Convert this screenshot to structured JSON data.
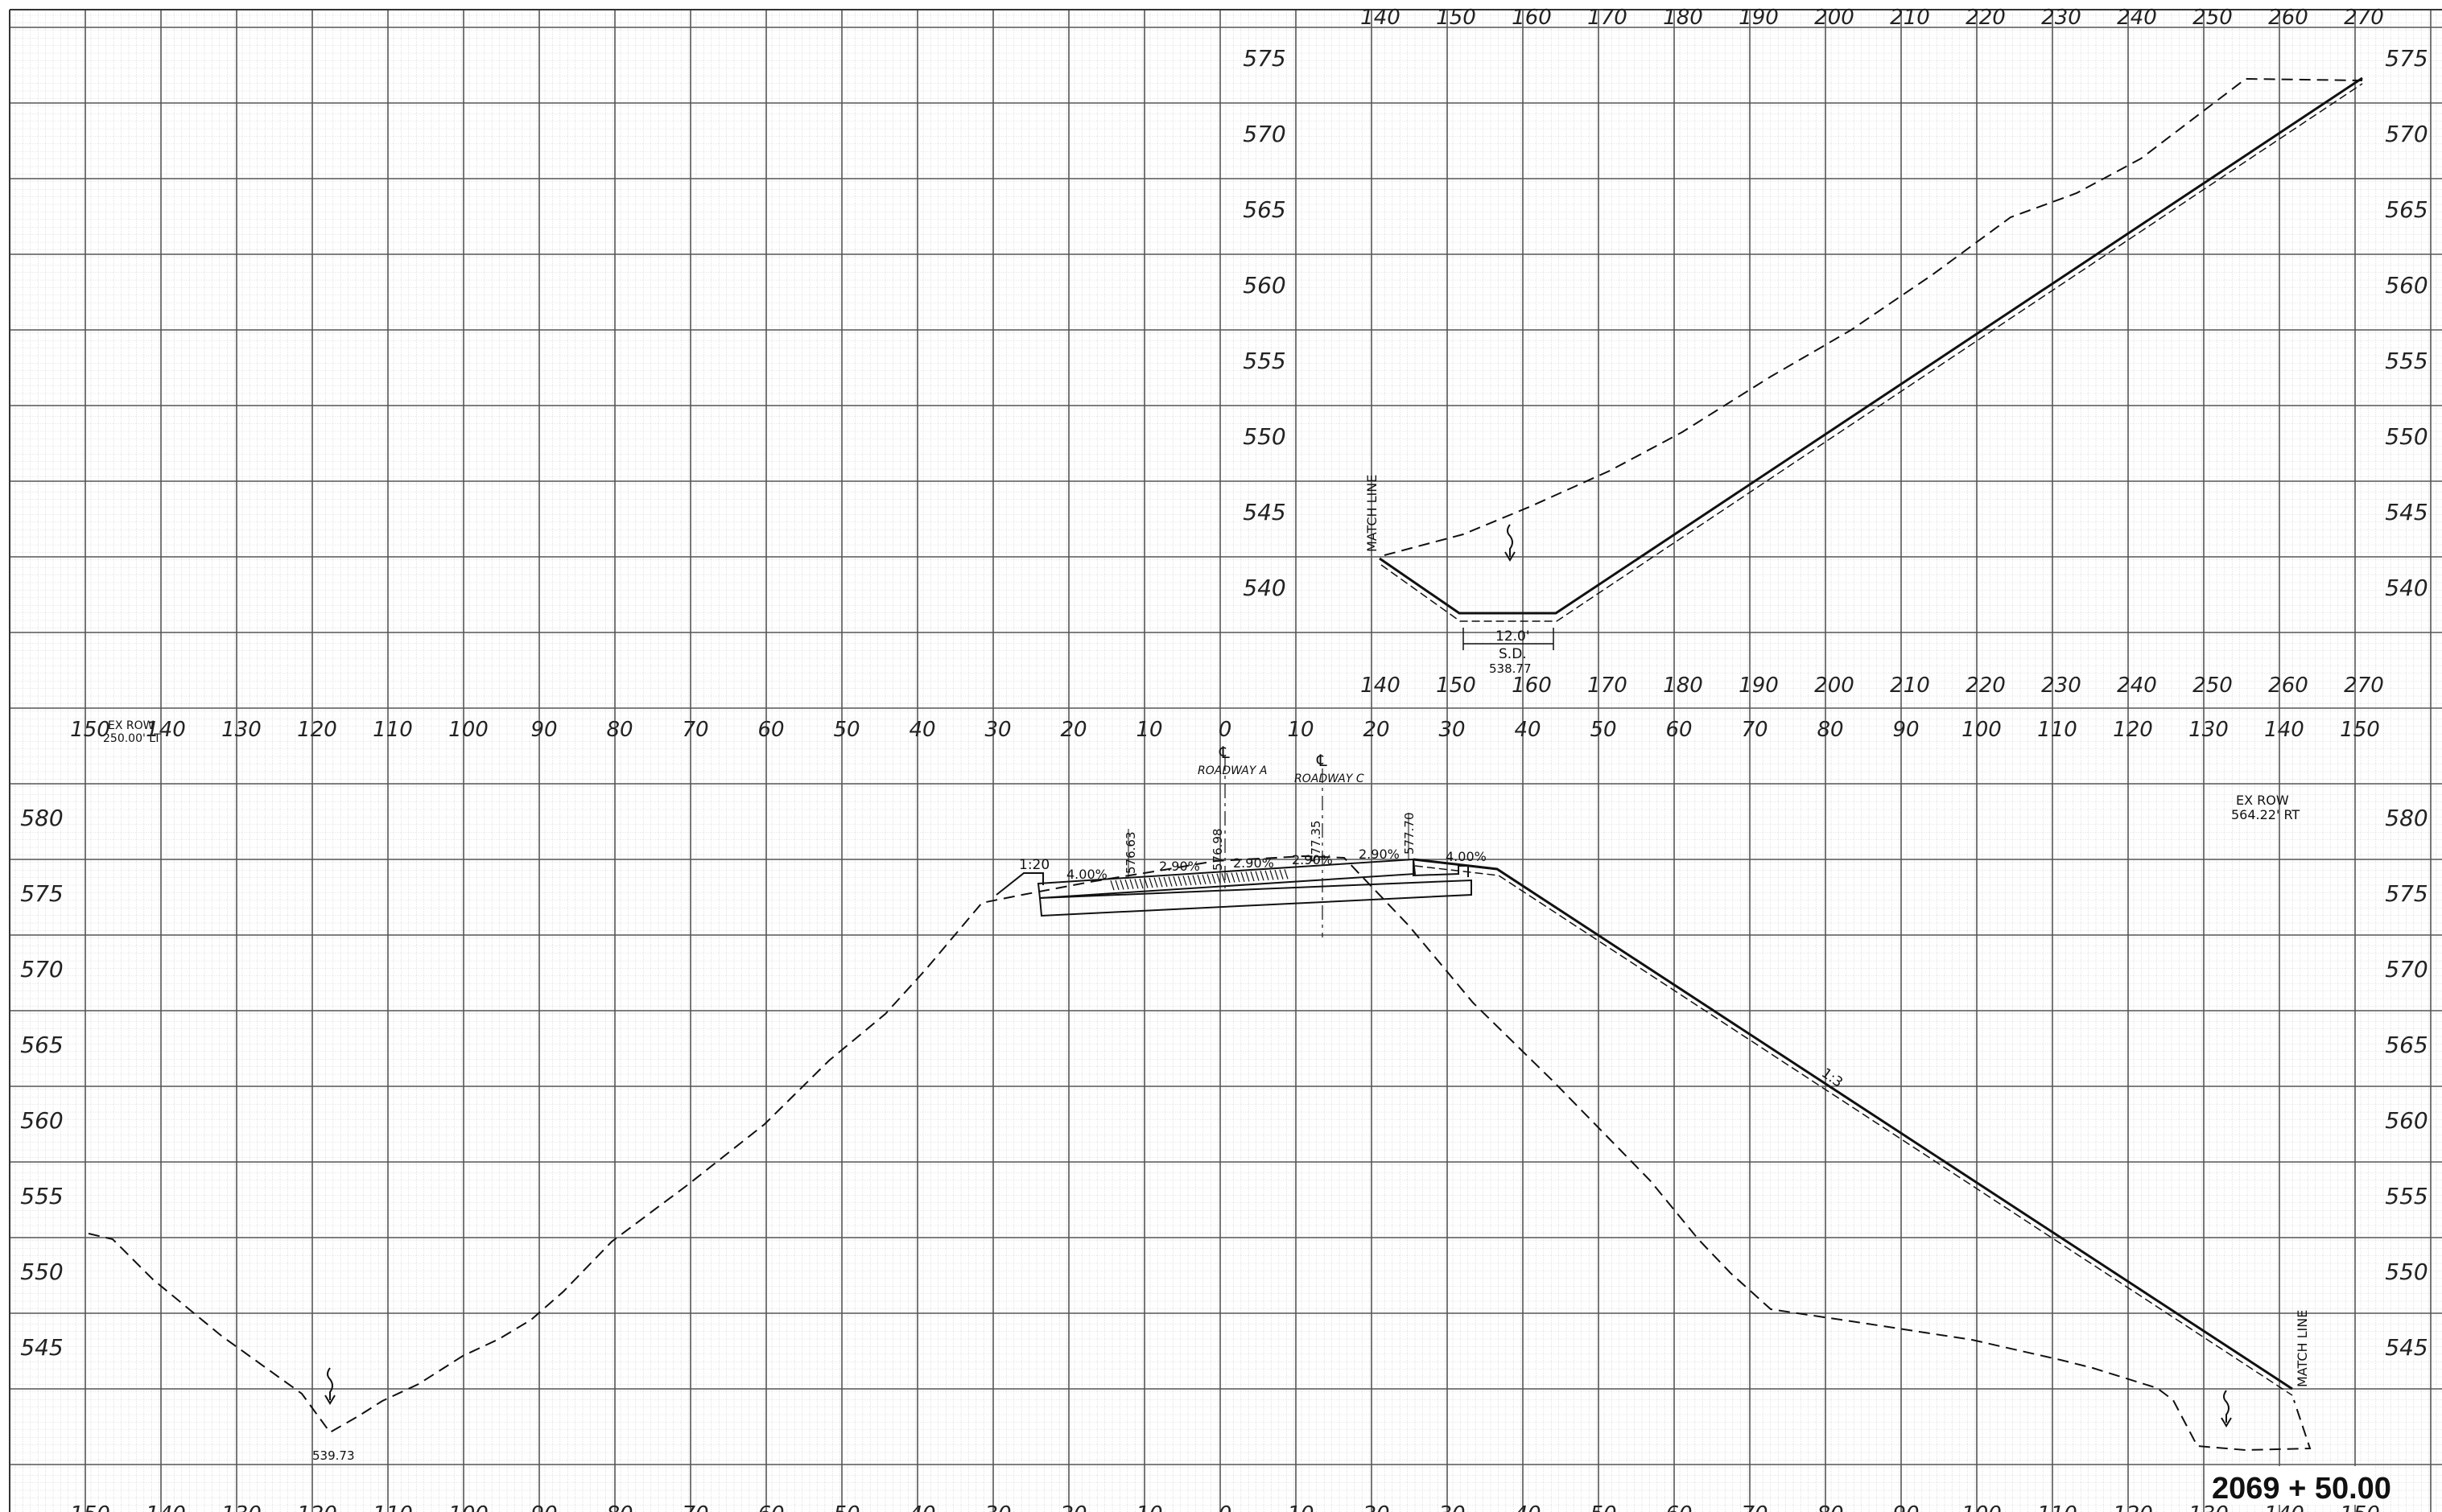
{
  "top_section": {
    "offset_labels": [
      "140",
      "150",
      "160",
      "170",
      "180",
      "190",
      "200",
      "210",
      "220",
      "230",
      "240",
      "250",
      "260",
      "270"
    ],
    "elevation_labels": [
      "575",
      "570",
      "565",
      "560",
      "555",
      "550",
      "545",
      "540"
    ],
    "match_line_label": "MATCH LINE",
    "ditch_width_label": "12.0'",
    "ditch_sd_label": "S.D.",
    "ditch_elev_label": "538.77"
  },
  "bottom_section": {
    "offset_labels": [
      "150",
      "140",
      "130",
      "120",
      "110",
      "100",
      "90",
      "80",
      "70",
      "60",
      "50",
      "40",
      "30",
      "20",
      "10",
      "0",
      "10",
      "20",
      "30",
      "40",
      "50",
      "60",
      "70",
      "80",
      "90",
      "100",
      "110",
      "120",
      "130",
      "140",
      "150"
    ],
    "elevation_labels": [
      "580",
      "575",
      "570",
      "565",
      "560",
      "555",
      "550",
      "545"
    ],
    "ex_row_left_label": "EX ROW",
    "ex_row_left_value": "250.00' LT",
    "ex_row_right_label": "EX ROW",
    "ex_row_right_value": "564.22' RT",
    "centerline_a_label": "ROADWAY A",
    "centerline_c_label": "ROADWAY C",
    "centerline_symbol": "℄",
    "slope_ratio_left": "1:20",
    "slope_ratio_side": "1:3",
    "cross_slopes": [
      "4.00%",
      "2.90%",
      "2.90%",
      "2.90%",
      "2.90%",
      "4.00%"
    ],
    "elev_callouts": [
      "576.63",
      "576.98",
      "577.35",
      "577.70"
    ],
    "low_point_label": "539.73",
    "match_line_label": "MATCH LINE"
  },
  "station_label": "2069 + 50.00"
}
